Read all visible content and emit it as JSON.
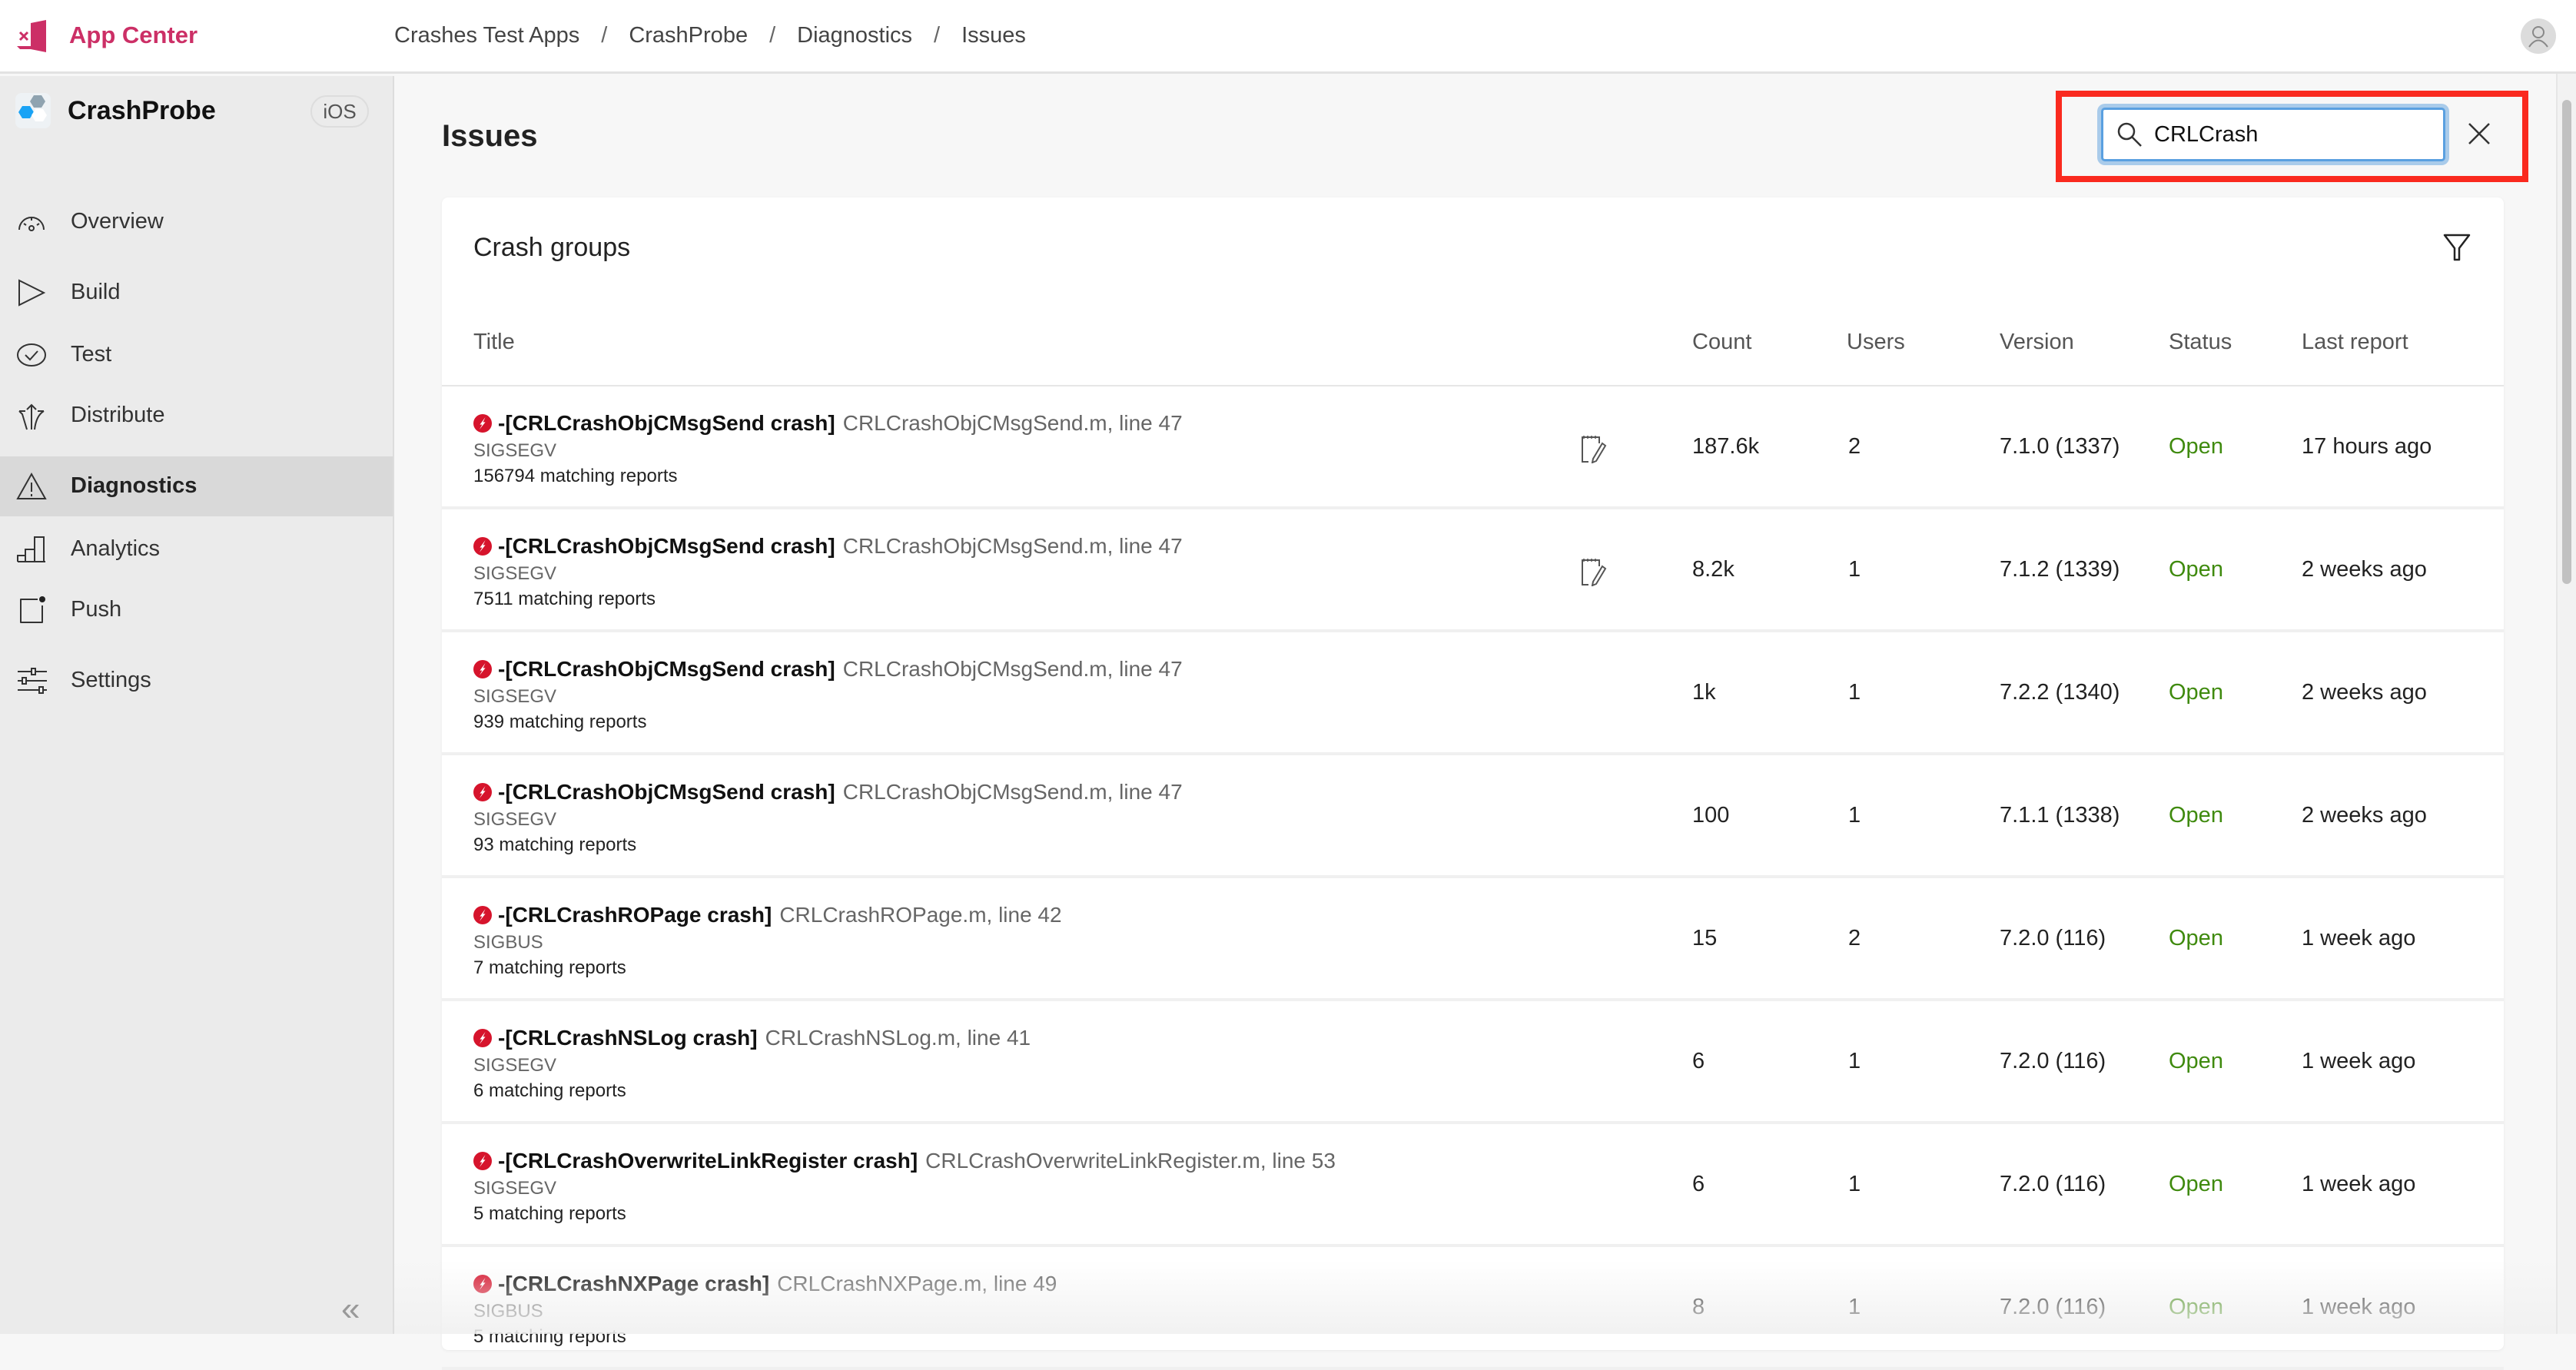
{
  "brand": {
    "name": "App Center",
    "color": "#cc2f66"
  },
  "breadcrumb": [
    "Crashes Test Apps",
    "CrashProbe",
    "Diagnostics",
    "Issues"
  ],
  "app": {
    "name": "CrashProbe",
    "platform": "iOS"
  },
  "sidebar": {
    "items": [
      {
        "label": "Overview",
        "icon": "gauge-icon"
      },
      {
        "label": "Build",
        "icon": "play-icon"
      },
      {
        "label": "Test",
        "icon": "check-circle-icon"
      },
      {
        "label": "Distribute",
        "icon": "distribute-arrows-icon"
      },
      {
        "label": "Diagnostics",
        "icon": "warning-icon",
        "active": true
      },
      {
        "label": "Analytics",
        "icon": "bar-chart-icon"
      },
      {
        "label": "Push",
        "icon": "push-notification-icon"
      },
      {
        "label": "Settings",
        "icon": "sliders-icon"
      }
    ]
  },
  "page": {
    "title": "Issues"
  },
  "search": {
    "value": "CRLCrash",
    "highlight_color": "#fa2a1f"
  },
  "crash_groups": {
    "title": "Crash groups",
    "columns": [
      "Title",
      "Count",
      "Users",
      "Version",
      "Status",
      "Last report"
    ],
    "rows": [
      {
        "method": "-[CRLCrashObjCMsgSend crash]",
        "file": "CRLCrashObjCMsgSend.m, line 47",
        "signal": "SIGSEGV",
        "reports": "156794 matching reports",
        "count": "187.6k",
        "users": "2",
        "version": "7.1.0 (1337)",
        "status": "Open",
        "last": "17 hours ago",
        "note": true
      },
      {
        "method": "-[CRLCrashObjCMsgSend crash]",
        "file": "CRLCrashObjCMsgSend.m, line 47",
        "signal": "SIGSEGV",
        "reports": "7511 matching reports",
        "count": "8.2k",
        "users": "1",
        "version": "7.1.2 (1339)",
        "status": "Open",
        "last": "2 weeks ago",
        "note": true
      },
      {
        "method": "-[CRLCrashObjCMsgSend crash]",
        "file": "CRLCrashObjCMsgSend.m, line 47",
        "signal": "SIGSEGV",
        "reports": "939 matching reports",
        "count": "1k",
        "users": "1",
        "version": "7.2.2 (1340)",
        "status": "Open",
        "last": "2 weeks ago"
      },
      {
        "method": "-[CRLCrashObjCMsgSend crash]",
        "file": "CRLCrashObjCMsgSend.m, line 47",
        "signal": "SIGSEGV",
        "reports": "93 matching reports",
        "count": "100",
        "users": "1",
        "version": "7.1.1 (1338)",
        "status": "Open",
        "last": "2 weeks ago"
      },
      {
        "method": "-[CRLCrashROPage crash]",
        "file": "CRLCrashROPage.m, line 42",
        "signal": "SIGBUS",
        "reports": "7 matching reports",
        "count": "15",
        "users": "2",
        "version": "7.2.0 (116)",
        "status": "Open",
        "last": "1 week ago"
      },
      {
        "method": "-[CRLCrashNSLog crash]",
        "file": "CRLCrashNSLog.m, line 41",
        "signal": "SIGSEGV",
        "reports": "6 matching reports",
        "count": "6",
        "users": "1",
        "version": "7.2.0 (116)",
        "status": "Open",
        "last": "1 week ago"
      },
      {
        "method": "-[CRLCrashOverwriteLinkRegister crash]",
        "file": "CRLCrashOverwriteLinkRegister.m, line 53",
        "signal": "SIGSEGV",
        "reports": "5 matching reports",
        "count": "6",
        "users": "1",
        "version": "7.2.0 (116)",
        "status": "Open",
        "last": "1 week ago"
      },
      {
        "method": "-[CRLCrashNXPage crash]",
        "file": "CRLCrashNXPage.m, line 49",
        "signal": "SIGBUS",
        "reports": "5 matching reports",
        "count": "8",
        "users": "1",
        "version": "7.2.0 (116)",
        "status": "Open",
        "last": "1 week ago"
      }
    ]
  }
}
